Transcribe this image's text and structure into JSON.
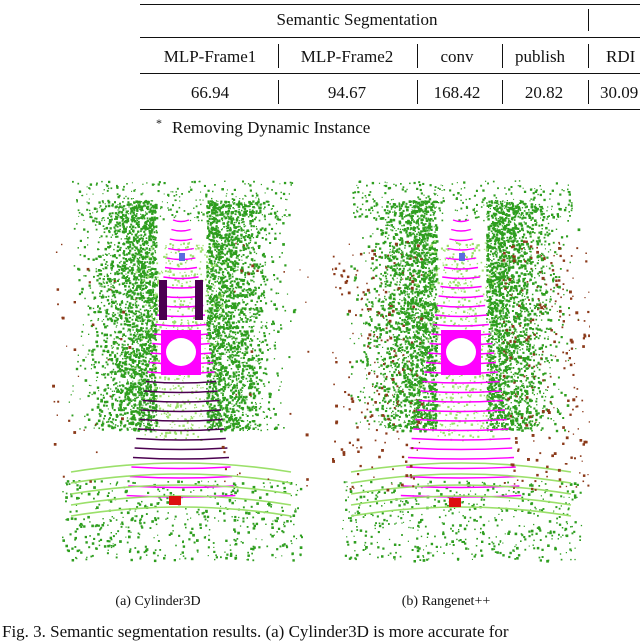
{
  "table": {
    "group_header": "Semantic Segmentation",
    "columns": [
      "MLP-Frame1",
      "MLP-Frame2",
      "conv",
      "publish",
      "RDI"
    ],
    "values": [
      "66.94",
      "94.67",
      "168.42",
      "20.82",
      "30.09"
    ],
    "footnote_mark": "*",
    "footnote": "Removing Dynamic Instance"
  },
  "figure": {
    "subcaption_a": "(a) Cylinder3D",
    "subcaption_b": "(b) Rangenet++",
    "caption": "Fig. 3. Semantic segmentation results. (a) Cylinder3D is more accurate for"
  },
  "colors": {
    "vegetation": "#2e9e1f",
    "terrain": "#9be06a",
    "road": "#ff00ff",
    "sidewalk": "#4b0050",
    "trunk": "#8b3a1a",
    "car": "#dd1010",
    "person": "#5a6be0"
  }
}
